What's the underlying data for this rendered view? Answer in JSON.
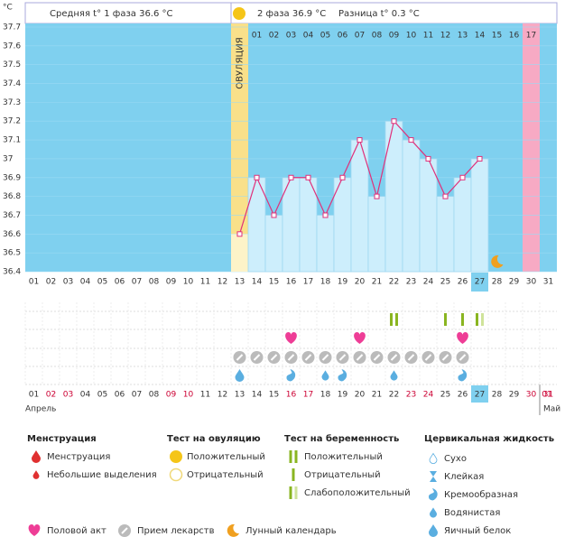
{
  "header": {
    "phase1": "Средняя t° 1 фаза 36.6 °C",
    "phase2": "2 фаза 36.9 °C",
    "difference": "Разница t° 0.3 °C"
  },
  "chart_data": {
    "type": "line",
    "y_label": "°C",
    "ovulation_label": "ОВУЛЯЦИЯ",
    "color": "#e0307a",
    "categories": [
      "01",
      "02",
      "03",
      "04",
      "05",
      "06",
      "07",
      "08",
      "09",
      "10",
      "11",
      "12",
      "13",
      "14",
      "15",
      "16",
      "17",
      "18",
      "19",
      "20",
      "21",
      "22",
      "23",
      "24",
      "25",
      "26",
      "27",
      "28",
      "29",
      "30",
      "31"
    ],
    "values": [
      null,
      null,
      null,
      null,
      null,
      null,
      null,
      null,
      null,
      null,
      null,
      null,
      36.6,
      36.9,
      36.7,
      36.9,
      36.9,
      36.7,
      36.9,
      37.1,
      36.8,
      37.2,
      37.1,
      37.0,
      36.8,
      36.9,
      37.0,
      null,
      null,
      null,
      null
    ],
    "ylim": [
      36.4,
      37.7
    ],
    "yticks": [
      37.7,
      37.6,
      37.5,
      37.4,
      37.3,
      37.2,
      37.1,
      37,
      36.9,
      36.8,
      36.7,
      36.6,
      36.5,
      36.4
    ],
    "ovulation_day": "13",
    "menstruation_day": "30",
    "moon_day": "28",
    "today": "27",
    "cycle_start": "14",
    "cycle_days": [
      "01",
      "02",
      "03",
      "04",
      "05",
      "06",
      "07",
      "08",
      "09",
      "10",
      "11",
      "12",
      "13",
      "14",
      "15",
      "16",
      "17"
    ]
  },
  "calendar": {
    "month_start": "Апрель",
    "month_end": "Май",
    "next_month_days": [
      "01"
    ],
    "weekend": [
      false,
      true,
      true,
      false,
      false,
      false,
      false,
      false,
      true,
      true,
      false,
      false,
      false,
      false,
      false,
      true,
      true,
      false,
      false,
      false,
      false,
      false,
      true,
      true,
      false,
      false,
      false,
      false,
      false,
      true,
      true
    ],
    "tests": [
      {
        "day": "22",
        "kind": "preg_pos"
      },
      {
        "day": "25",
        "kind": "preg_neg"
      },
      {
        "day": "26",
        "kind": "preg_neg"
      },
      {
        "day": "27",
        "kind": "preg_weak"
      }
    ],
    "sex": [
      "16",
      "20",
      "26"
    ],
    "pills": [
      "13",
      "14",
      "15",
      "16",
      "17",
      "18",
      "19",
      "20",
      "21",
      "22",
      "23",
      "24",
      "25",
      "26"
    ],
    "fluid": [
      {
        "day": "13",
        "kind": "egg_white"
      },
      {
        "day": "16",
        "kind": "cream"
      },
      {
        "day": "18",
        "kind": "watery"
      },
      {
        "day": "19",
        "kind": "cream"
      },
      {
        "day": "22",
        "kind": "watery"
      },
      {
        "day": "26",
        "kind": "cream"
      }
    ]
  },
  "legend": {
    "groups": [
      {
        "title": "Менструация",
        "items": [
          {
            "label": "Менструация",
            "icon": "menstruation"
          },
          {
            "label": "Небольшие выделения",
            "icon": "spotting"
          }
        ]
      },
      {
        "title": "Тест на овуляцию",
        "items": [
          {
            "label": "Положительный",
            "icon": "ovu_pos"
          },
          {
            "label": "Отрицательный",
            "icon": "ovu_neg"
          }
        ]
      },
      {
        "title": "Тест на беременность",
        "items": [
          {
            "label": "Положительный",
            "icon": "preg_pos"
          },
          {
            "label": "Отрицательный",
            "icon": "preg_neg"
          },
          {
            "label": "Слабоположительный",
            "icon": "preg_weak"
          }
        ]
      },
      {
        "title": "Цервикальная жидкость",
        "items": [
          {
            "label": "Сухо",
            "icon": "dry"
          },
          {
            "label": "Клейкая",
            "icon": "sticky"
          },
          {
            "label": "Кремообразная",
            "icon": "cream"
          },
          {
            "label": "Водянистая",
            "icon": "watery"
          },
          {
            "label": "Яичный белок",
            "icon": "egg_white"
          }
        ]
      }
    ],
    "extra": [
      {
        "label": "Половой акт",
        "icon": "heart"
      },
      {
        "label": "Прием лекарств",
        "icon": "pill"
      },
      {
        "label": "Лунный календарь",
        "icon": "moon"
      }
    ]
  }
}
